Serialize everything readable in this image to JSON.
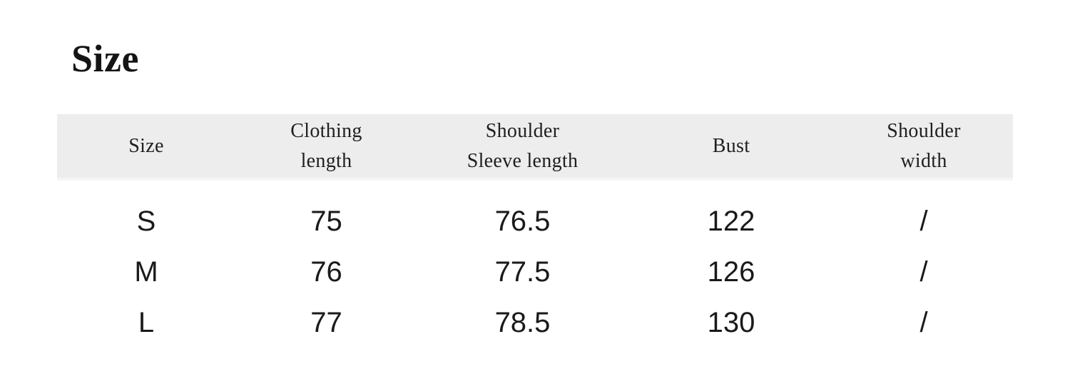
{
  "section": {
    "title": "Size"
  },
  "table": {
    "header_bg_color": "#ededed",
    "text_color": "#1a1a1a",
    "columns": [
      {
        "label": "Size",
        "lines": [
          "Size",
          ""
        ]
      },
      {
        "label": "Clothing length",
        "lines": [
          "Clothing",
          "length"
        ]
      },
      {
        "label": "Shoulder Sleeve length",
        "lines": [
          "Shoulder",
          "Sleeve length"
        ]
      },
      {
        "label": "Bust",
        "lines": [
          "Bust",
          ""
        ]
      },
      {
        "label": "Shoulder width",
        "lines": [
          "Shoulder",
          "width"
        ]
      }
    ],
    "rows": [
      {
        "cells": [
          "S",
          "75",
          "76.5",
          "122",
          "/"
        ]
      },
      {
        "cells": [
          "M",
          "76",
          "77.5",
          "126",
          "/"
        ]
      },
      {
        "cells": [
          "L",
          "77",
          "78.5",
          "130",
          "/"
        ]
      }
    ]
  }
}
